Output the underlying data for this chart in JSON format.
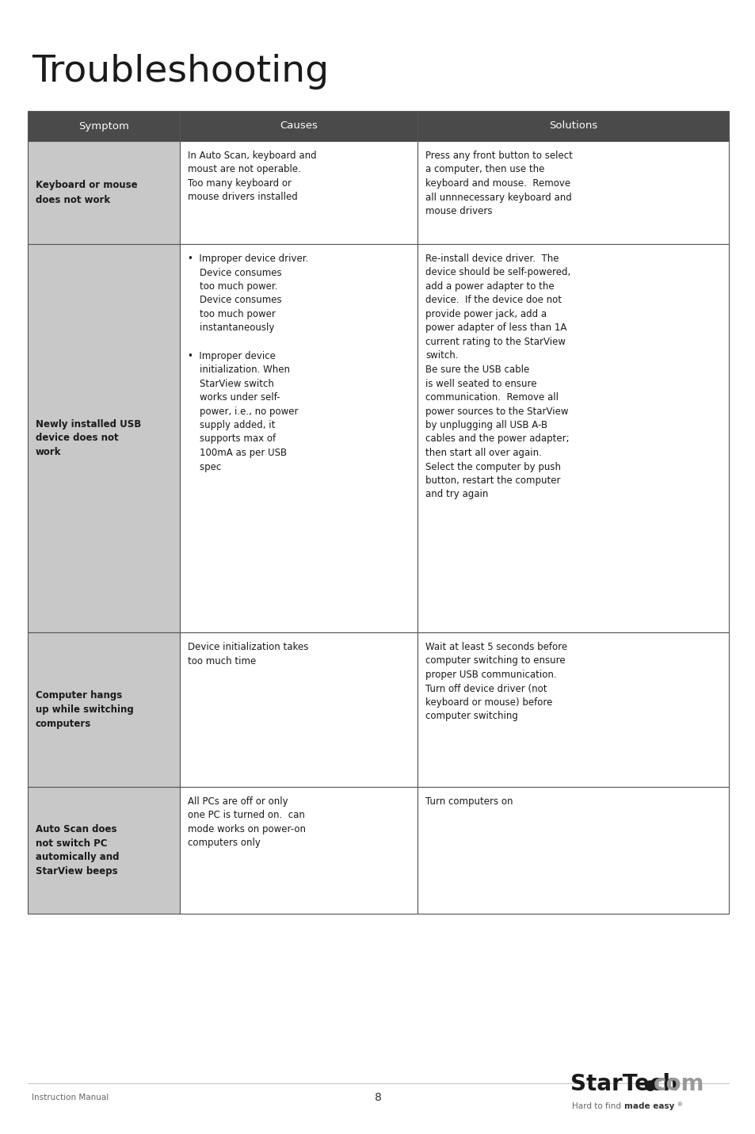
{
  "title": "Troubleshooting",
  "title_fontsize": 34,
  "background_color": "#ffffff",
  "header_bg": "#4a4a4a",
  "header_text_color": "#ffffff",
  "symptom_bg": "#c8c8c8",
  "cell_bg": "#ffffff",
  "text_color": "#1a1a1a",
  "border_color": "#555555",
  "headers": [
    "Symptom",
    "Causes",
    "Solutions"
  ],
  "rows": [
    {
      "symptom": "Keyboard or mouse\ndoes not work",
      "causes": "In Auto Scan, keyboard and\nmoust are not operable.\nToo many keyboard or\nmouse drivers installed",
      "solutions": "Press any front button to select\na computer, then use the\nkeyboard and mouse.  Remove\nall unnnecessary keyboard and\nmouse drivers"
    },
    {
      "symptom": "Newly installed USB\ndevice does not\nwork",
      "causes": "•  Improper device driver.\n    Device consumes\n    too much power.\n    Device consumes\n    too much power\n    instantaneously\n\n•  Improper device\n    initialization. When\n    StarView switch\n    works under self-\n    power, i.e., no power\n    supply added, it\n    supports max of\n    100mA as per USB\n    spec",
      "solutions": "Re-install device driver.  The\ndevice should be self-powered,\nadd a power adapter to the\ndevice.  If the device doe not\nprovide power jack, add a\npower adapter of less than 1A\ncurrent rating to the StarView\nswitch.\nBe sure the USB cable\nis well seated to ensure\ncommunication.  Remove all\npower sources to the StarView\nby unplugging all USB A-B\ncables and the power adapter;\nthen start all over again.\nSelect the computer by push\nbutton, restart the computer\nand try again"
    },
    {
      "symptom": "Computer hangs\nup while switching\ncomputers",
      "causes": "Device initialization takes\ntoo much time",
      "solutions": "Wait at least 5 seconds before\ncomputer switching to ensure\nproper USB communication.\nTurn off device driver (not\nkeyboard or mouse) before\ncomputer switching"
    },
    {
      "symptom": "Auto Scan does\nnot switch PC\nautomically and\nStarView beeps",
      "causes": "All PCs are off or only\none PC is turned on.  can\nmode works on power-on\ncomputers only",
      "solutions": "Turn computers on"
    }
  ],
  "footer_left": "Instruction Manual",
  "footer_center": "8"
}
